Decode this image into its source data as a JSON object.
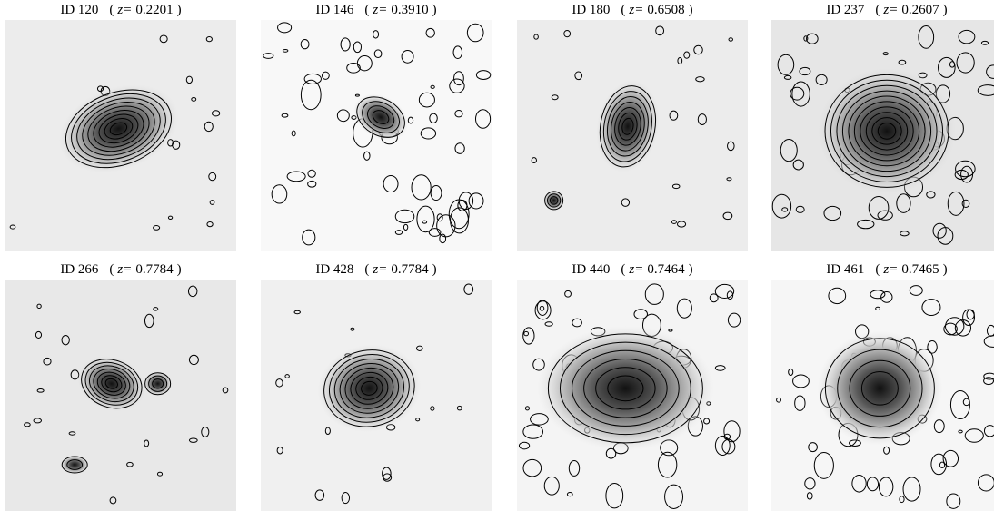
{
  "figure": {
    "z_symbol": "z=",
    "paren_open": "(",
    "paren_close": ")",
    "panels": [
      {
        "id": "ID 120",
        "redshift": "0.2201"
      },
      {
        "id": "ID 146",
        "redshift": "0.3910"
      },
      {
        "id": "ID 180",
        "redshift": "0.6508"
      },
      {
        "id": "ID 237",
        "redshift": "0.2607"
      },
      {
        "id": "ID 266",
        "redshift": "0.7784"
      },
      {
        "id": "ID 428",
        "redshift": "0.7784"
      },
      {
        "id": "ID 440",
        "redshift": "0.7464"
      },
      {
        "id": "ID 461",
        "redshift": "0.7465"
      }
    ]
  }
}
